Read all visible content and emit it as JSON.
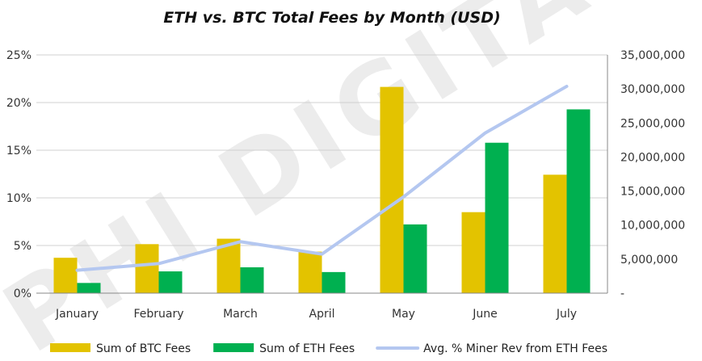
{
  "watermark": "PHI DIGITAL",
  "chart_data": {
    "type": "bar",
    "title": "ETH vs. BTC Total Fees by Month (USD)",
    "categories": [
      "January",
      "February",
      "March",
      "April",
      "May",
      "June",
      "July"
    ],
    "y_left": {
      "range": [
        0,
        0.25
      ],
      "ticks": [
        "0%",
        "5%",
        "10%",
        "15%",
        "20%",
        "25%"
      ]
    },
    "y_right": {
      "range": [
        0,
        35000000
      ],
      "ticks": [
        "-",
        "5,000,000",
        "10,000,000",
        "15,000,000",
        "20,000,000",
        "25,000,000",
        "30,000,000",
        "35,000,000"
      ]
    },
    "grid": true,
    "legend_position": "bottom",
    "series": [
      {
        "name": "Sum of BTC Fees",
        "type": "bar",
        "axis": "right",
        "color": "#E3C300",
        "values": [
          5200000,
          7200000,
          8000000,
          6100000,
          30300000,
          11900000,
          17400000
        ]
      },
      {
        "name": "Sum of ETH Fees",
        "type": "bar",
        "axis": "right",
        "color": "#00B050",
        "values": [
          1500000,
          3200000,
          3800000,
          3100000,
          10100000,
          22100000,
          27000000
        ]
      },
      {
        "name": "Avg. % Miner Rev from ETH Fees",
        "type": "line",
        "axis": "left",
        "color": "#B4C7F0",
        "values": [
          0.024,
          0.031,
          0.054,
          0.041,
          0.101,
          0.168,
          0.217
        ]
      }
    ]
  }
}
